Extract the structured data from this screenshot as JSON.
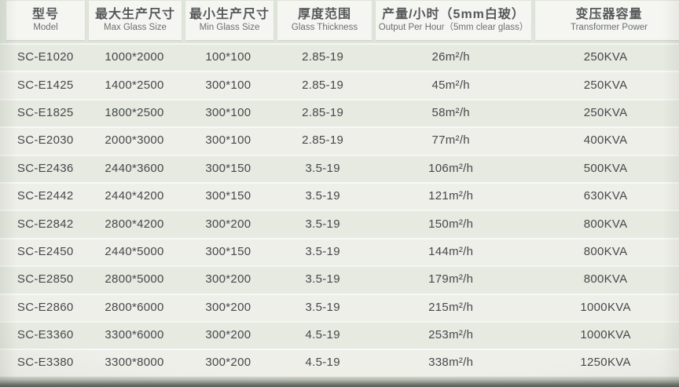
{
  "table": {
    "columns": [
      {
        "zh": "型号",
        "en": "Model"
      },
      {
        "zh": "最大生产尺寸",
        "en": "Max Glass Size"
      },
      {
        "zh": "最小生产尺寸",
        "en": "Min Glass Size"
      },
      {
        "zh": "厚度范围",
        "en": "Glass Thickness"
      },
      {
        "zh": "产量/小时（5mm白玻）",
        "en": "Output Per Hour（5mm clear glass）"
      },
      {
        "zh": "变压器容量",
        "en": "Transformer Power"
      }
    ],
    "column_keys": [
      "model",
      "max-glass-size",
      "min-glass-size",
      "glass-thickness",
      "output-per-hour",
      "transformer-power"
    ],
    "rows": [
      [
        "SC-E1020",
        "1000*2000",
        "100*100",
        "2.85-19",
        "26m²/h",
        "250KVA"
      ],
      [
        "SC-E1425",
        "1400*2500",
        "300*100",
        "2.85-19",
        "45m²/h",
        "250KVA"
      ],
      [
        "SC-E1825",
        "1800*2500",
        "300*100",
        "2.85-19",
        "58m²/h",
        "250KVA"
      ],
      [
        "SC-E2030",
        "2000*3000",
        "300*100",
        "2.85-19",
        "77m²/h",
        "400KVA"
      ],
      [
        "SC-E2436",
        "2440*3600",
        "300*150",
        "3.5-19",
        "106m²/h",
        "500KVA"
      ],
      [
        "SC-E2442",
        "2440*4200",
        "300*150",
        "3.5-19",
        "121m²/h",
        "630KVA"
      ],
      [
        "SC-E2842",
        "2800*4200",
        "300*200",
        "3.5-19",
        "150m²/h",
        "800KVA"
      ],
      [
        "SC-E2450",
        "2440*5000",
        "300*150",
        "3.5-19",
        "144m²/h",
        "800KVA"
      ],
      [
        "SC-E2850",
        "2800*5000",
        "300*200",
        "3.5-19",
        "179m²/h",
        "800KVA"
      ],
      [
        "SC-E2860",
        "2800*6000",
        "300*200",
        "3.5-19",
        "215m²/h",
        "1000KVA"
      ],
      [
        "SC-E3360",
        "3300*6000",
        "300*200",
        "4.5-19",
        "253m²/h",
        "1000KVA"
      ],
      [
        "SC-E3380",
        "3300*8000",
        "300*200",
        "4.5-19",
        "338m²/h",
        "1250KVA"
      ]
    ]
  },
  "colors": {
    "page_background": "#e1e6dc",
    "header_box": "#f5f5f1",
    "row_odd": "#e6eae1",
    "row_even": "#efefea",
    "header_text": "#55585a",
    "body_text": "#46494b",
    "bottom_edge": "#575e56"
  }
}
